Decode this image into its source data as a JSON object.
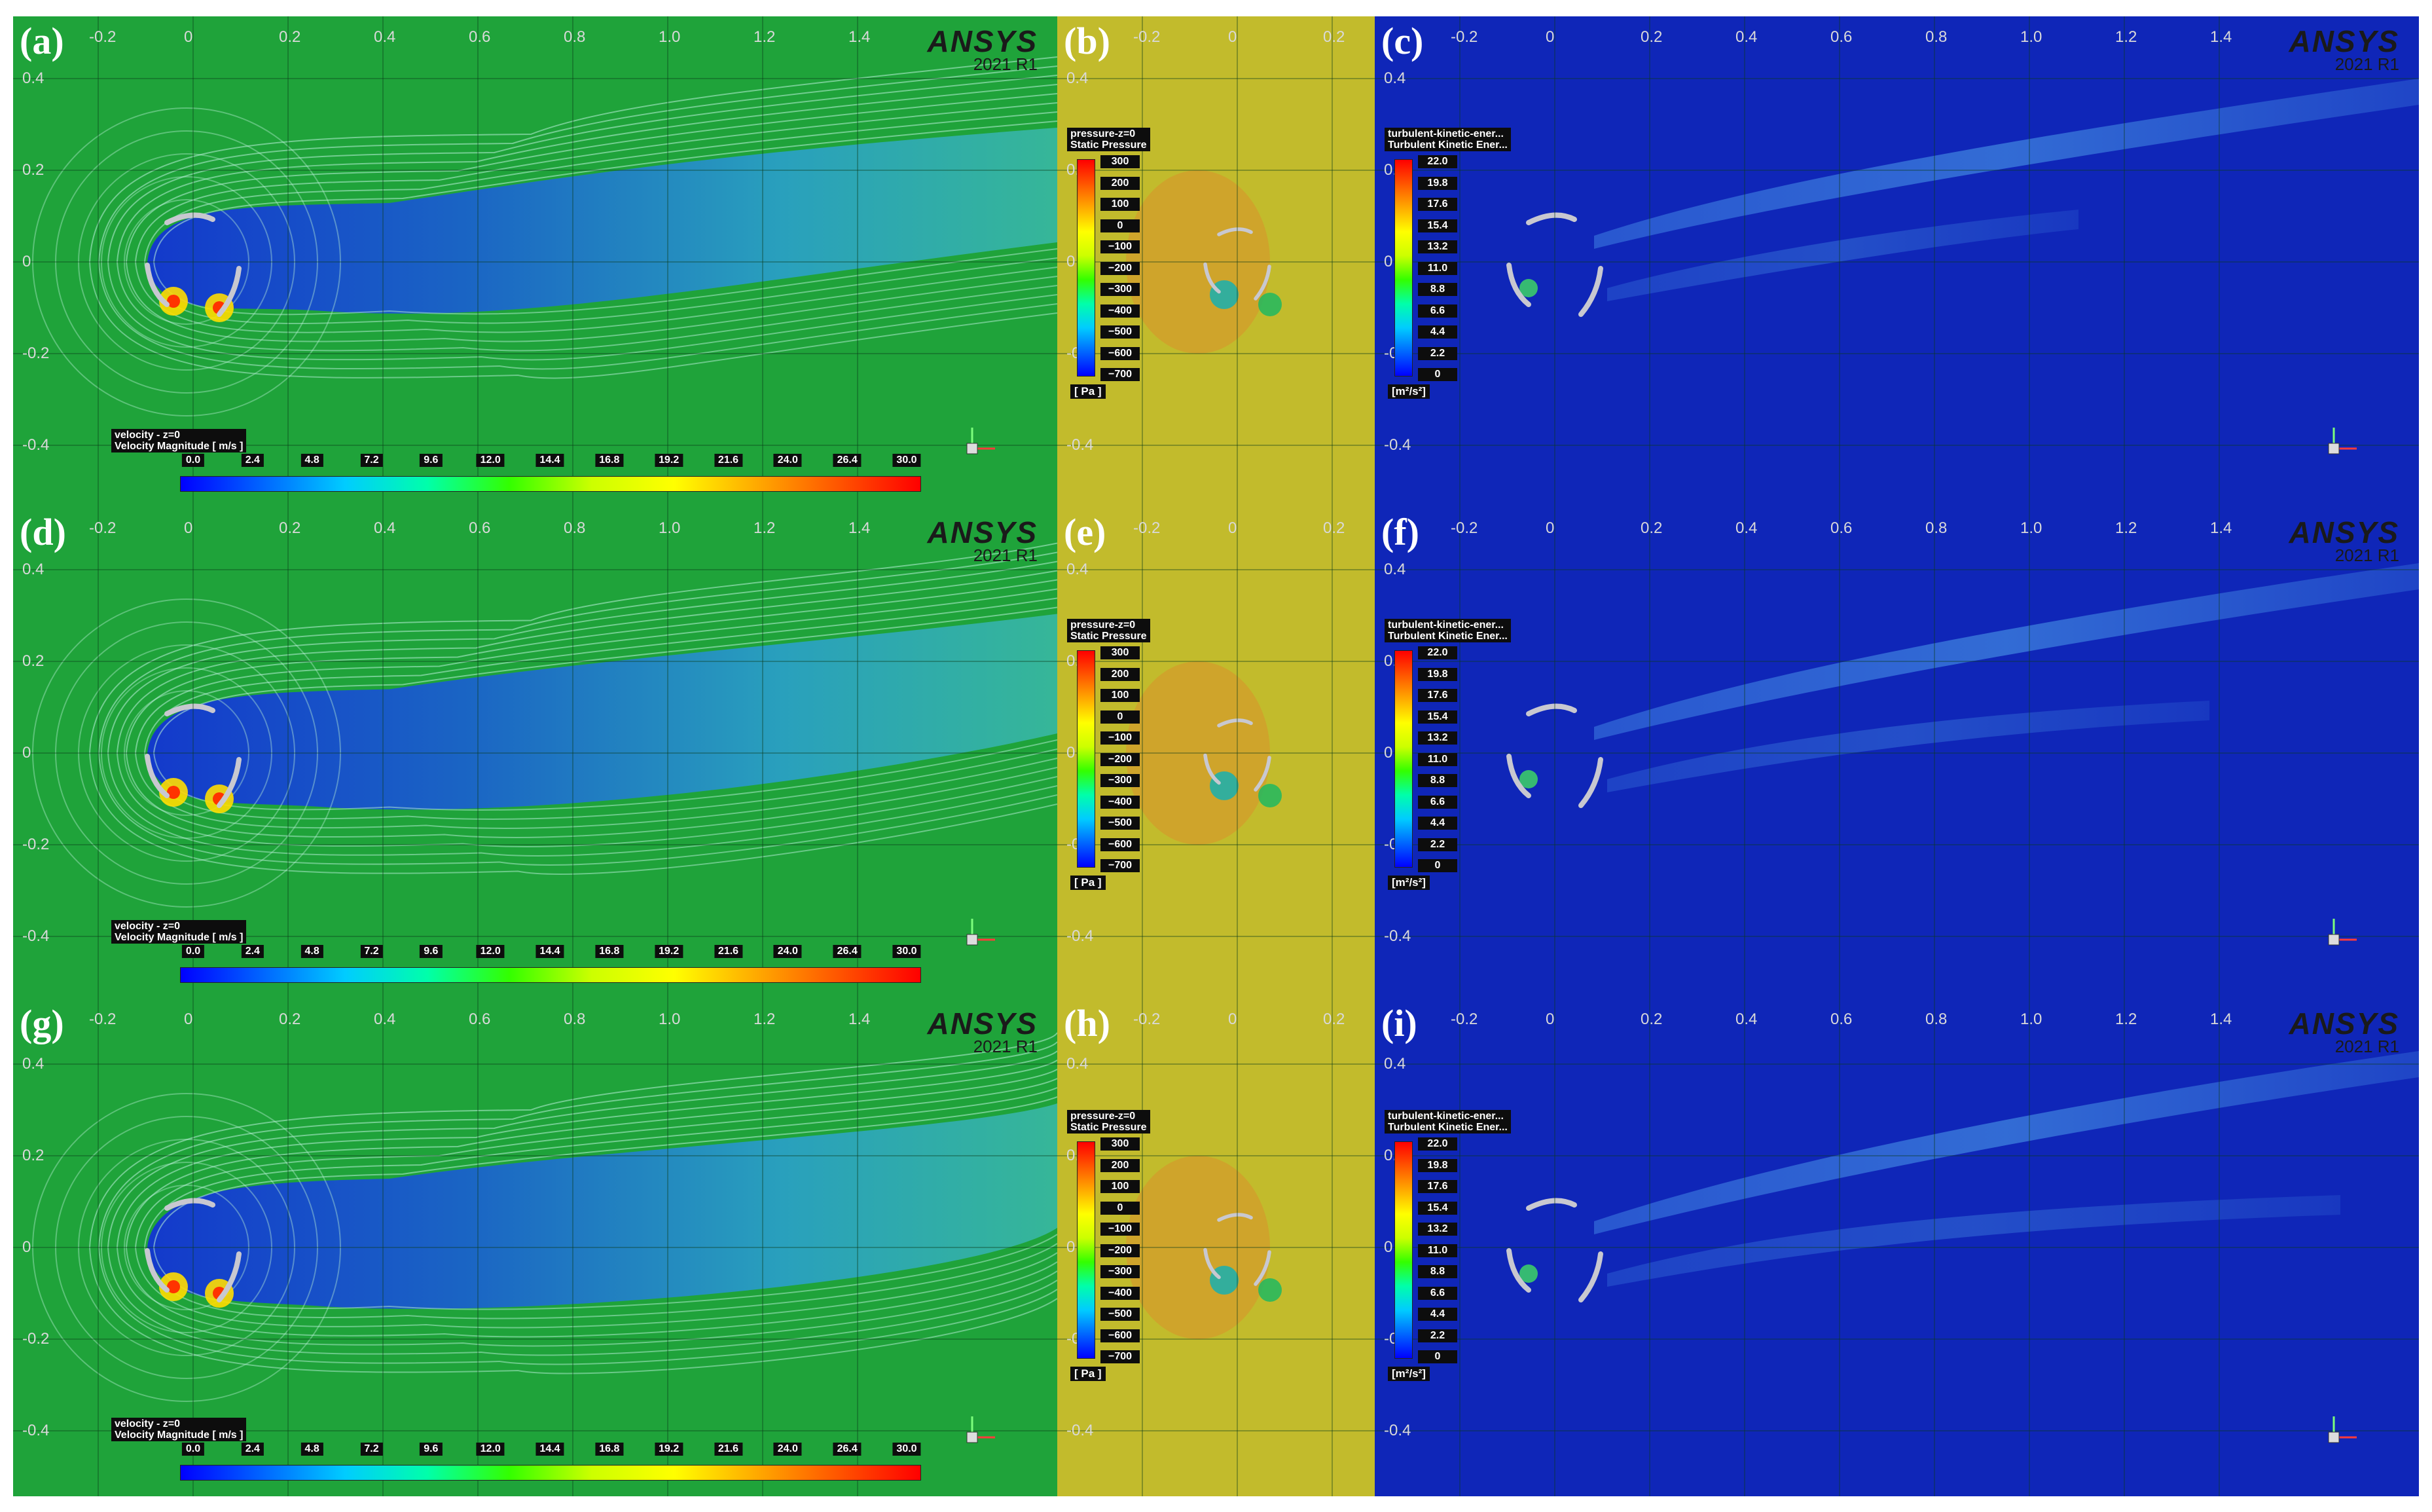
{
  "brand": {
    "name": "ANSYS",
    "version": "2021 R1"
  },
  "colors": {
    "velocity_bg": "#1fa33a",
    "pressure_bg": "#c2bb2c",
    "tke_bg": "#0f26b8",
    "contour_line": "#b8f0d8"
  },
  "velocity_legend": {
    "title_line1": "velocity - z=0",
    "title_line2": "Velocity Magnitude [ m/s ]",
    "labels": [
      "0.0",
      "2.4",
      "4.8",
      "7.2",
      "9.6",
      "12.0",
      "14.4",
      "16.8",
      "19.2",
      "21.6",
      "24.0",
      "26.4",
      "30.0"
    ]
  },
  "pressure_legend": {
    "title_line1": "pressure-z=0",
    "title_line2": "Static Pressure",
    "labels": [
      "300",
      "200",
      "100",
      "0",
      "−100",
      "−200",
      "−300",
      "−400",
      "−500",
      "−600",
      "−700"
    ],
    "unit": "[ Pa ]"
  },
  "tke_legend": {
    "title_line1": "turbulent-kinetic-ener...",
    "title_line2": "Turbulent Kinetic Ener...",
    "labels": [
      "22.0",
      "19.8",
      "17.6",
      "15.4",
      "13.2",
      "11.0",
      "8.8",
      "6.6",
      "4.4",
      "2.2",
      "0"
    ],
    "unit": "[m²/s²]"
  },
  "axes": {
    "x_wide": [
      "-0.2",
      "0",
      "0.2",
      "0.4",
      "0.6",
      "0.8",
      "1.0",
      "1.2",
      "1.4"
    ],
    "x_narrow": [
      "-0.2",
      "0",
      "0.2"
    ],
    "y": [
      "0.4",
      "0.2",
      "0",
      "-0.2",
      "-0.4"
    ]
  },
  "panels": [
    {
      "label": "(a)",
      "kind": "velocity",
      "wake": 1.0
    },
    {
      "label": "(b)",
      "kind": "pressure",
      "wake": 1.0
    },
    {
      "label": "(c)",
      "kind": "tke",
      "wake": 1.0
    },
    {
      "label": "(d)",
      "kind": "velocity",
      "wake": 1.25
    },
    {
      "label": "(e)",
      "kind": "pressure",
      "wake": 1.25
    },
    {
      "label": "(f)",
      "kind": "tke",
      "wake": 1.25
    },
    {
      "label": "(g)",
      "kind": "velocity",
      "wake": 1.5
    },
    {
      "label": "(h)",
      "kind": "pressure",
      "wake": 1.5
    },
    {
      "label": "(i)",
      "kind": "tke",
      "wake": 1.5
    }
  ]
}
